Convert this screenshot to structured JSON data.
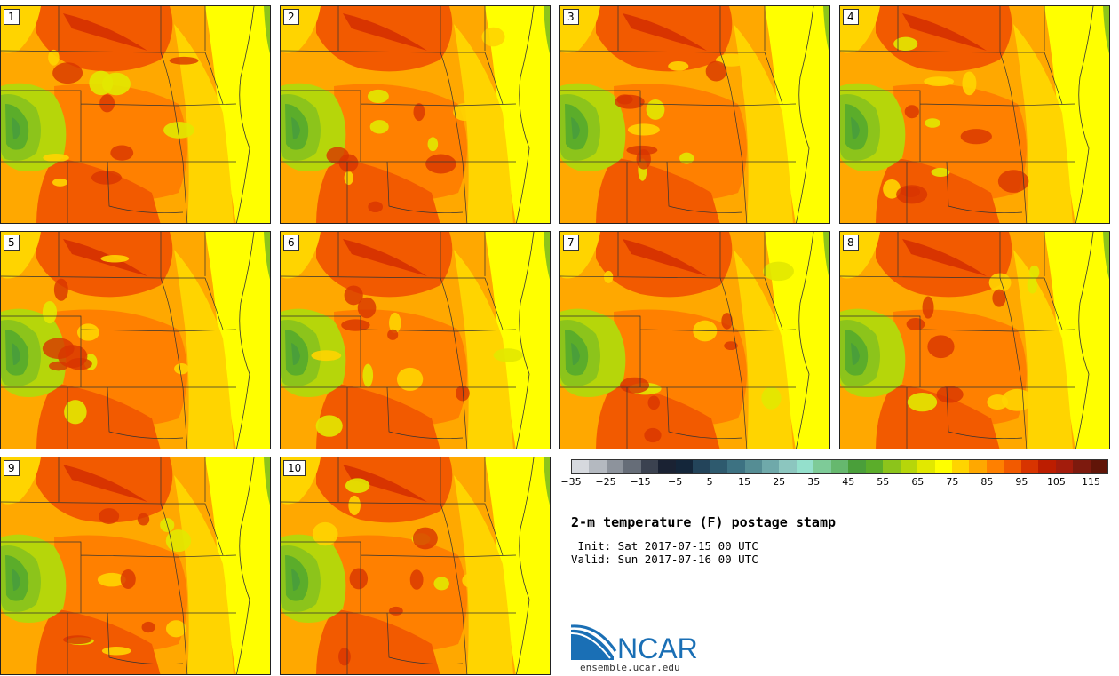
{
  "panels": [
    {
      "label": "1"
    },
    {
      "label": "2"
    },
    {
      "label": "3"
    },
    {
      "label": "4"
    },
    {
      "label": "5"
    },
    {
      "label": "6"
    },
    {
      "label": "7"
    },
    {
      "label": "8"
    },
    {
      "label": "9"
    },
    {
      "label": "10"
    }
  ],
  "colorbar": {
    "colors": [
      "#d6d9de",
      "#b4b9c0",
      "#8d939c",
      "#666d78",
      "#3b4250",
      "#1a2233",
      "#14263a",
      "#23445a",
      "#2e5a6e",
      "#3d7282",
      "#558d94",
      "#6fa9aa",
      "#8cc6bf",
      "#94e0cc",
      "#7ecb98",
      "#66b86e",
      "#4a9f3a",
      "#5bad2a",
      "#8cc41b",
      "#b6d60a",
      "#e2e800",
      "#ffff00",
      "#ffd400",
      "#ffa800",
      "#ff8000",
      "#f25a00",
      "#d83400",
      "#bc1d00",
      "#a31c0c",
      "#7d1a0e",
      "#611508"
    ],
    "tick_labels": [
      "−35",
      "−25",
      "−15",
      "−5",
      "5",
      "15",
      "25",
      "35",
      "45",
      "55",
      "65",
      "75",
      "85",
      "95",
      "105",
      "115"
    ]
  },
  "title": "2-m temperature (F) postage stamp",
  "init_line": " Init: Sat 2017-07-15 00 UTC",
  "valid_line": "Valid: Sun 2017-07-16 00 UTC",
  "logo": {
    "text": "NCAR",
    "url": "ensemble.ucar.edu"
  }
}
